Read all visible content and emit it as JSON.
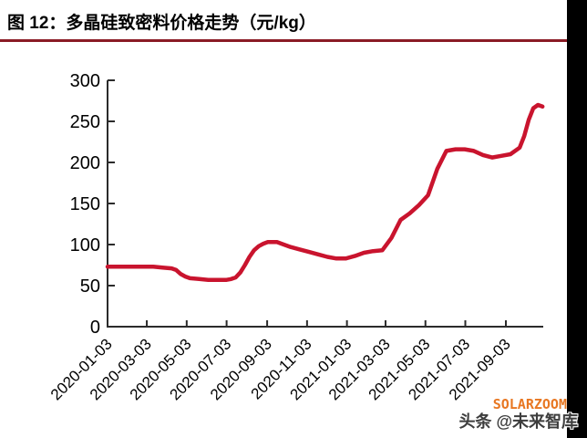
{
  "figure": {
    "title": "图 12：多晶硅致密料价格走势（元/kg）"
  },
  "watermark": {
    "brand": "SOLARZOOM",
    "brand_color": "#E87722",
    "byline": "头条 @未来智库"
  },
  "colors": {
    "line": "#C9142E",
    "underline": "#8A1B25",
    "axis": "#2b2b2b",
    "tick_label": "#000000",
    "edge_bar": "#000000"
  },
  "chart_data": {
    "type": "line",
    "title": "多晶硅致密料价格走势",
    "unit": "元/kg",
    "xlabel": "",
    "ylabel": "",
    "ylim": [
      0,
      300
    ],
    "y_ticks": [
      0,
      50,
      100,
      150,
      200,
      250,
      300
    ],
    "x_tick_labels": [
      "2020-01-03",
      "2020-03-03",
      "2020-05-03",
      "2020-07-03",
      "2020-09-03",
      "2020-11-03",
      "2021-01-03",
      "2021-03-03",
      "2021-05-03",
      "2021-07-03",
      "2021-09-03"
    ],
    "grid": false,
    "legend": "none",
    "series": [
      {
        "name": "多晶硅致密料价格（元/kg）",
        "color": "#C9142E",
        "points": [
          [
            "2020-01-03",
            73
          ],
          [
            "2020-01-17",
            73
          ],
          [
            "2020-01-31",
            73
          ],
          [
            "2020-02-14",
            73
          ],
          [
            "2020-02-28",
            73
          ],
          [
            "2020-03-13",
            73
          ],
          [
            "2020-03-27",
            72
          ],
          [
            "2020-04-10",
            71
          ],
          [
            "2020-04-17",
            69
          ],
          [
            "2020-04-24",
            64
          ],
          [
            "2020-05-01",
            61
          ],
          [
            "2020-05-08",
            59
          ],
          [
            "2020-05-22",
            58
          ],
          [
            "2020-06-05",
            57
          ],
          [
            "2020-06-19",
            57
          ],
          [
            "2020-07-03",
            57
          ],
          [
            "2020-07-10",
            58
          ],
          [
            "2020-07-17",
            60
          ],
          [
            "2020-07-24",
            66
          ],
          [
            "2020-07-31",
            75
          ],
          [
            "2020-08-07",
            85
          ],
          [
            "2020-08-14",
            93
          ],
          [
            "2020-08-21",
            98
          ],
          [
            "2020-08-28",
            101
          ],
          [
            "2020-09-04",
            103
          ],
          [
            "2020-09-11",
            103
          ],
          [
            "2020-09-18",
            103
          ],
          [
            "2020-09-25",
            101
          ],
          [
            "2020-10-09",
            97
          ],
          [
            "2020-10-23",
            94
          ],
          [
            "2020-11-06",
            91
          ],
          [
            "2020-11-20",
            88
          ],
          [
            "2020-12-04",
            85
          ],
          [
            "2020-12-18",
            83
          ],
          [
            "2021-01-01",
            83
          ],
          [
            "2021-01-15",
            86
          ],
          [
            "2021-01-29",
            90
          ],
          [
            "2021-02-12",
            92
          ],
          [
            "2021-02-26",
            93
          ],
          [
            "2021-03-12",
            108
          ],
          [
            "2021-03-26",
            130
          ],
          [
            "2021-04-09",
            138
          ],
          [
            "2021-04-23",
            148
          ],
          [
            "2021-05-07",
            160
          ],
          [
            "2021-05-21",
            192
          ],
          [
            "2021-06-04",
            214
          ],
          [
            "2021-06-18",
            216
          ],
          [
            "2021-07-02",
            216
          ],
          [
            "2021-07-16",
            214
          ],
          [
            "2021-07-30",
            209
          ],
          [
            "2021-08-13",
            206
          ],
          [
            "2021-08-27",
            208
          ],
          [
            "2021-09-10",
            210
          ],
          [
            "2021-09-24",
            218
          ],
          [
            "2021-10-01",
            232
          ],
          [
            "2021-10-08",
            252
          ],
          [
            "2021-10-15",
            266
          ],
          [
            "2021-10-22",
            270
          ],
          [
            "2021-10-29",
            268
          ]
        ]
      }
    ]
  }
}
